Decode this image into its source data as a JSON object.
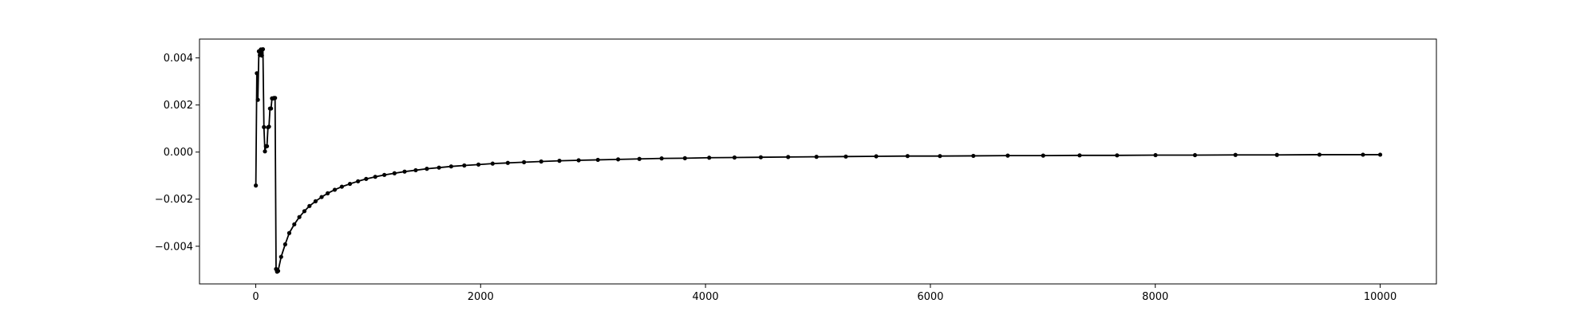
{
  "chart_data": {
    "type": "line",
    "title": "",
    "xlabel": "",
    "ylabel": "",
    "grid": false,
    "legend": "none",
    "xlim": [
      -500,
      10500
    ],
    "ylim": [
      -0.0056,
      0.0048
    ],
    "xticks": [
      0,
      2000,
      4000,
      6000,
      8000,
      10000
    ],
    "xtick_labels": [
      "0",
      "2000",
      "4000",
      "6000",
      "8000",
      "10000"
    ],
    "yticks": [
      -0.004,
      -0.002,
      0.0,
      0.002,
      0.004
    ],
    "ytick_labels": [
      "−0.004",
      "−0.002",
      "0.000",
      "0.002",
      "0.004"
    ],
    "line_color": "#000000",
    "series": [
      {
        "x": [
          1,
          10,
          19,
          28,
          37,
          46,
          55,
          64,
          73,
          82,
          91,
          100,
          109,
          118,
          127,
          136,
          145,
          154,
          163,
          172,
          181,
          190,
          199,
          226,
          262,
          298,
          343,
          388,
          433,
          478,
          532,
          586,
          640,
          703,
          766,
          838,
          910,
          982,
          1063,
          1144,
          1234,
          1324,
          1423,
          1522,
          1630,
          1738,
          1855,
          1981,
          2107,
          2242,
          2386,
          2539,
          2701,
          2872,
          3043,
          3223,
          3412,
          3610,
          3817,
          4033,
          4258,
          4492,
          4735,
          4987,
          5248,
          5518,
          5797,
          6085,
          6382,
          6688,
          7003,
          7327,
          7660,
          8002,
          8353,
          8713,
          9082,
          9460,
          9847,
          10000
        ],
        "y": [
          -0.00142,
          0.00335,
          0.00222,
          0.00428,
          0.00412,
          0.00436,
          0.0041,
          0.00437,
          0.00106,
          3e-05,
          0.00025,
          0.00025,
          0.00105,
          0.00108,
          0.00185,
          0.00185,
          0.00228,
          0.00228,
          0.0023,
          0.0023,
          -0.00497,
          -0.00508,
          -0.00505,
          -0.00445,
          -0.00392,
          -0.00344,
          -0.00307,
          -0.00276,
          -0.00251,
          -0.00229,
          -0.00209,
          -0.00191,
          -0.00175,
          -0.0016,
          -0.00147,
          -0.00135,
          -0.00124,
          -0.00114,
          -0.00105,
          -0.00097,
          -0.0009,
          -0.00083,
          -0.00077,
          -0.00071,
          -0.00066,
          -0.00061,
          -0.00057,
          -0.00053,
          -0.00049,
          -0.00046,
          -0.00043,
          -0.0004,
          -0.00037,
          -0.00035,
          -0.00033,
          -0.00031,
          -0.00029,
          -0.00027,
          -0.00026,
          -0.00024,
          -0.00023,
          -0.00022,
          -0.00021,
          -0.0002,
          -0.00019,
          -0.00018,
          -0.00017,
          -0.00017,
          -0.00016,
          -0.00015,
          -0.00015,
          -0.00014,
          -0.00014,
          -0.00013,
          -0.00013,
          -0.00012,
          -0.00012,
          -0.00011,
          -0.00011,
          -0.00011
        ]
      }
    ]
  }
}
